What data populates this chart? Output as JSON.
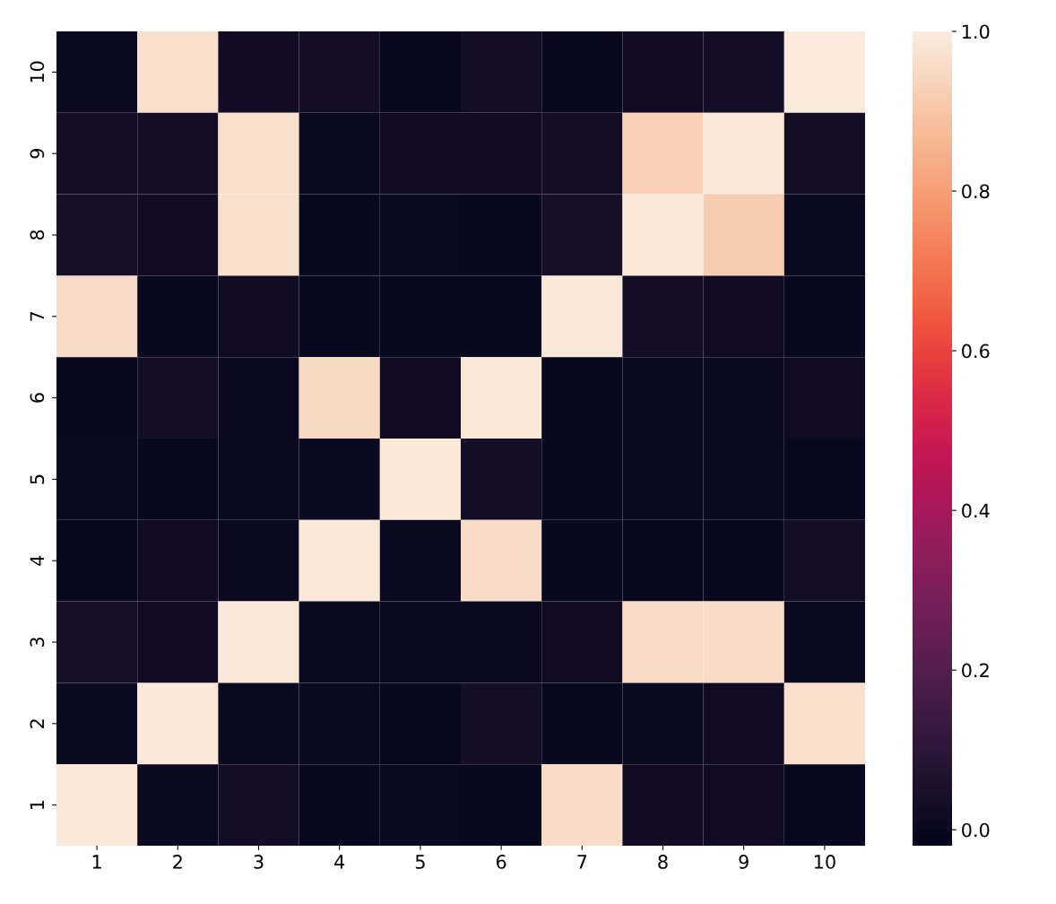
{
  "chart_data": {
    "type": "heatmap",
    "categories": [
      "1",
      "2",
      "3",
      "4",
      "5",
      "6",
      "7",
      "8",
      "9",
      "10"
    ],
    "y_categories": [
      "10",
      "9",
      "8",
      "7",
      "6",
      "5",
      "4",
      "3",
      "2",
      "1"
    ],
    "cells": [
      [
        0.01,
        0.97,
        0.02,
        0.03,
        0.0,
        0.03,
        0.0,
        0.02,
        0.03,
        1.0
      ],
      [
        0.03,
        0.03,
        0.97,
        0.01,
        0.02,
        0.02,
        0.03,
        0.93,
        0.99,
        0.03
      ],
      [
        0.04,
        0.02,
        0.97,
        0.0,
        0.01,
        0.0,
        0.04,
        0.99,
        0.92,
        0.01
      ],
      [
        0.96,
        0.0,
        0.02,
        0.0,
        0.0,
        0.0,
        0.99,
        0.03,
        0.02,
        0.0
      ],
      [
        0.0,
        0.03,
        0.01,
        0.95,
        0.02,
        0.99,
        0.0,
        0.01,
        0.01,
        0.02
      ],
      [
        0.01,
        0.0,
        0.01,
        0.01,
        0.99,
        0.03,
        0.0,
        0.01,
        0.01,
        0.0
      ],
      [
        0.0,
        0.02,
        0.01,
        0.99,
        0.01,
        0.96,
        0.0,
        0.0,
        0.0,
        0.03
      ],
      [
        0.04,
        0.02,
        0.99,
        0.01,
        0.01,
        0.01,
        0.02,
        0.96,
        0.96,
        0.01
      ],
      [
        0.01,
        0.99,
        0.01,
        0.01,
        0.0,
        0.03,
        0.0,
        0.01,
        0.02,
        0.97
      ],
      [
        0.99,
        0.01,
        0.03,
        0.0,
        0.01,
        0.0,
        0.96,
        0.02,
        0.02,
        0.0
      ]
    ],
    "clim": [
      -0.02,
      1.0
    ],
    "cticks": [
      {
        "value": 0.0,
        "label": "0.0"
      },
      {
        "value": 0.2,
        "label": "0.2"
      },
      {
        "value": 0.4,
        "label": "0.4"
      },
      {
        "value": 0.6,
        "label": "0.6"
      },
      {
        "value": 0.8,
        "label": "0.8"
      },
      {
        "value": 1.0,
        "label": "1.0"
      }
    ]
  }
}
